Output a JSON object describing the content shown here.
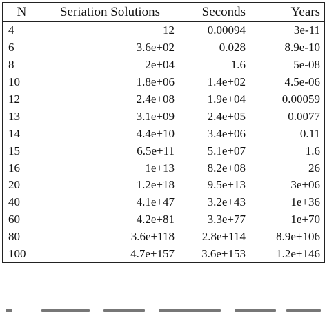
{
  "table": {
    "headers": {
      "n": "N",
      "solutions": "Seriation Solutions",
      "seconds": "Seconds",
      "years": "Years"
    },
    "rows": [
      {
        "n": "4",
        "solutions": "12",
        "seconds": "0.00094",
        "years": "3e-11"
      },
      {
        "n": "6",
        "solutions": "3.6e+02",
        "seconds": "0.028",
        "years": "8.9e-10"
      },
      {
        "n": "8",
        "solutions": "2e+04",
        "seconds": "1.6",
        "years": "5e-08"
      },
      {
        "n": "10",
        "solutions": "1.8e+06",
        "seconds": "1.4e+02",
        "years": "4.5e-06"
      },
      {
        "n": "12",
        "solutions": "2.4e+08",
        "seconds": "1.9e+04",
        "years": "0.00059"
      },
      {
        "n": "13",
        "solutions": "3.1e+09",
        "seconds": "2.4e+05",
        "years": "0.0077"
      },
      {
        "n": "14",
        "solutions": "4.4e+10",
        "seconds": "3.4e+06",
        "years": "0.11"
      },
      {
        "n": "15",
        "solutions": "6.5e+11",
        "seconds": "5.1e+07",
        "years": "1.6"
      },
      {
        "n": "16",
        "solutions": "1e+13",
        "seconds": "8.2e+08",
        "years": "26"
      },
      {
        "n": "20",
        "solutions": "1.2e+18",
        "seconds": "9.5e+13",
        "years": "3e+06"
      },
      {
        "n": "40",
        "solutions": "4.1e+47",
        "seconds": "3.2e+43",
        "years": "1e+36"
      },
      {
        "n": "60",
        "solutions": "4.2e+81",
        "seconds": "3.3e+77",
        "years": "1e+70"
      },
      {
        "n": "80",
        "solutions": "3.6e+118",
        "seconds": "2.8e+114",
        "years": "8.9e+106"
      },
      {
        "n": "100",
        "solutions": "4.7e+157",
        "seconds": "3.6e+153",
        "years": "1.2e+146"
      }
    ]
  }
}
